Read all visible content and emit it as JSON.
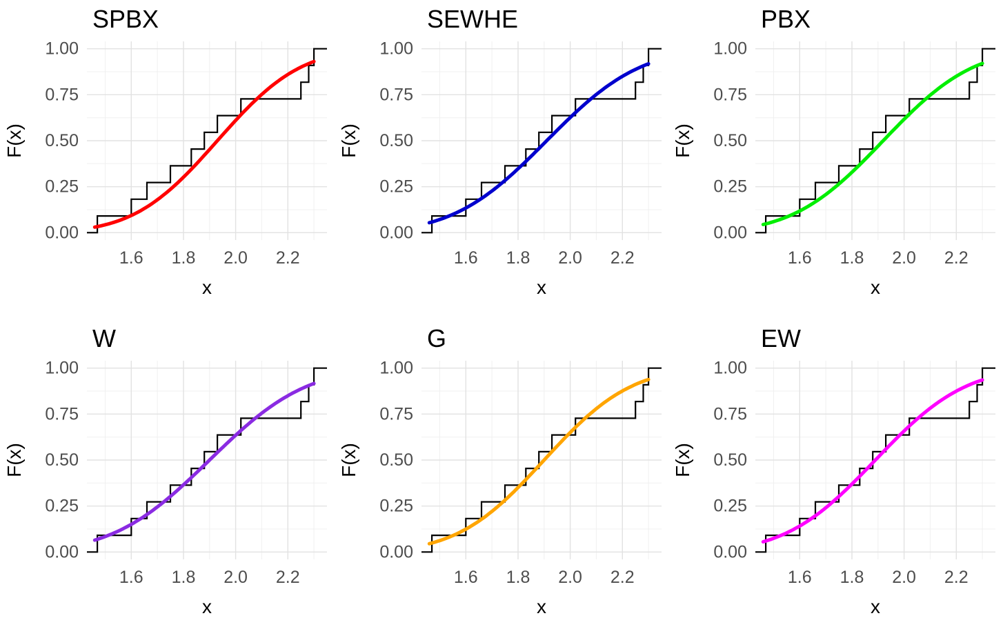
{
  "figure": {
    "description": "Grid of six empirical CDF step plots, each overlaid with a fitted smooth distribution CDF curve",
    "rows": 2,
    "cols": 3,
    "background_color": "#FFFFFF"
  },
  "chart_data": {
    "type": "line",
    "subtype": "ecdf_with_fitted_cdf",
    "shared": {
      "xlabel": "x",
      "ylabel": "F(x)",
      "x_ticks": [
        1.6,
        1.8,
        2.0,
        2.2
      ],
      "x_tick_labels": [
        "1.6",
        "1.8",
        "2.0",
        "2.2"
      ],
      "y_ticks": [
        0.0,
        0.25,
        0.5,
        0.75,
        1.0
      ],
      "y_tick_labels": [
        "0.00",
        "0.25",
        "0.50",
        "0.75",
        "1.00"
      ],
      "x_minor_ticks": [
        1.5,
        1.7,
        1.9,
        2.1,
        2.3
      ],
      "y_minor_ticks": [
        0.125,
        0.375,
        0.625,
        0.875
      ],
      "xlim": [
        1.43,
        2.35
      ],
      "ylim": [
        -0.04,
        1.04
      ],
      "grid": true,
      "grid_major_color": "#E2E2E2",
      "grid_minor_color": "#F0F0F0",
      "ecdf_color": "#000000",
      "ecdf_sample_values": [
        1.47,
        1.6,
        1.66,
        1.75,
        1.83,
        1.88,
        1.93,
        2.02,
        2.25,
        2.28,
        2.3
      ],
      "ecdf_step_height": 0.0909,
      "curve_x_range": [
        1.46,
        2.3
      ],
      "tick_label_color": "#4D4D4D",
      "axis_title_color": "#000000",
      "title_color": "#000000"
    },
    "panels": [
      {
        "title": "SPBX",
        "curve_color": "#FF0000",
        "fit": {
          "mean": 1.93,
          "sd": 0.25
        }
      },
      {
        "title": "SEWHE",
        "curve_color": "#0000CD",
        "fit": {
          "mean": 1.91,
          "sd": 0.28
        }
      },
      {
        "title": "PBX",
        "curve_color": "#00EE00",
        "fit": {
          "mean": 1.92,
          "sd": 0.27
        }
      },
      {
        "title": "W",
        "curve_color": "#8A2BE2",
        "fit": {
          "mean": 1.9,
          "sd": 0.29
        }
      },
      {
        "title": "G",
        "curve_color": "#FFA500",
        "fit": {
          "mean": 1.9,
          "sd": 0.26
        }
      },
      {
        "title": "EW",
        "curve_color": "#FF00FF",
        "fit": {
          "mean": 1.89,
          "sd": 0.27
        }
      }
    ]
  }
}
